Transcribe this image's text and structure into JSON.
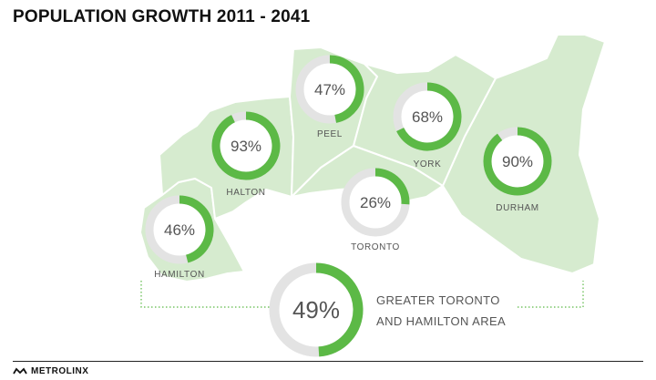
{
  "title": "POPULATION GROWTH 2011 - 2041",
  "colors": {
    "ring_fill": "#5cb946",
    "ring_track": "#e3e3e3",
    "region_fill": "#d6ebcf",
    "region_stroke": "#ffffff"
  },
  "regions": [
    {
      "id": "hamilton",
      "label": "HAMILTON",
      "growth_pct": 46,
      "value_text": "46%"
    },
    {
      "id": "halton",
      "label": "HALTON",
      "growth_pct": 93,
      "value_text": "93%"
    },
    {
      "id": "peel",
      "label": "PEEL",
      "growth_pct": 47,
      "value_text": "47%"
    },
    {
      "id": "york",
      "label": "YORK",
      "growth_pct": 68,
      "value_text": "68%"
    },
    {
      "id": "toronto",
      "label": "TORONTO",
      "growth_pct": 26,
      "value_text": "26%"
    },
    {
      "id": "durham",
      "label": "DURHAM",
      "growth_pct": 90,
      "value_text": "90%"
    }
  ],
  "total": {
    "growth_pct": 49,
    "value_text": "49%",
    "label_line1": "GREATER TORONTO",
    "label_line2": "AND HAMILTON AREA"
  },
  "footer": {
    "brand": "METROLINX",
    "icon": "metrolinx-logo-icon"
  }
}
